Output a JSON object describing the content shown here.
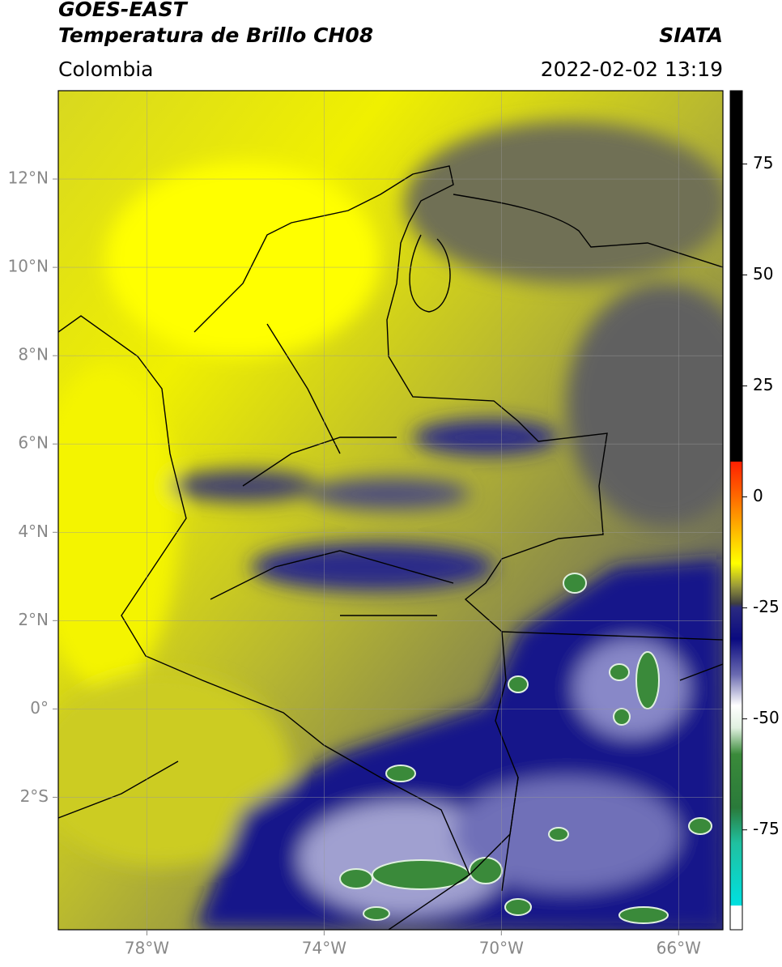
{
  "map": {
    "title": "GOES-EAST",
    "subtitle": "Temperatura de Brillo CH08",
    "source": "SIATA",
    "region": "Colombia",
    "datetime": "2022-02-02 13:19",
    "xlim": [
      -80,
      -65
    ],
    "ylim": [
      -5,
      14
    ],
    "xticks": [
      {
        "value": -78,
        "label": "78°W"
      },
      {
        "value": -74,
        "label": "74°W"
      },
      {
        "value": -70,
        "label": "70°W"
      },
      {
        "value": -66,
        "label": "66°W"
      }
    ],
    "yticks": [
      {
        "value": 12,
        "label": "12°N"
      },
      {
        "value": 10,
        "label": "10°N"
      },
      {
        "value": 8,
        "label": "8°N"
      },
      {
        "value": 6,
        "label": "6°N"
      },
      {
        "value": 4,
        "label": "4°N"
      },
      {
        "value": 2,
        "label": "2°N"
      },
      {
        "value": 0,
        "label": "0°"
      },
      {
        "value": -2,
        "label": "2°S"
      }
    ],
    "grid": true,
    "colorbar": {
      "lim": [
        -97.5,
        91.5
      ],
      "ticks": [
        75,
        50,
        25,
        0,
        -25,
        -50,
        -75
      ],
      "colorscale": [
        [
          91.5,
          "#000000"
        ],
        [
          8,
          "#000000"
        ],
        [
          7.9,
          "#ff2000"
        ],
        [
          0,
          "#ff6a00"
        ],
        [
          -10,
          "#ffd000"
        ],
        [
          -15,
          "#ffff00"
        ],
        [
          -20,
          "#9a9a3a"
        ],
        [
          -24,
          "#404040"
        ],
        [
          -25,
          "#2a2a80"
        ],
        [
          -32,
          "#0a0a80"
        ],
        [
          -40,
          "#6a6ab0"
        ],
        [
          -47,
          "#ffffff"
        ],
        [
          -52,
          "#e0f0e0"
        ],
        [
          -58,
          "#3a8a3a"
        ],
        [
          -70,
          "#2a7a3a"
        ],
        [
          -78,
          "#20c0a0"
        ],
        [
          -92,
          "#00e0e0"
        ],
        [
          -92.1,
          "#ffffff"
        ],
        [
          -97.5,
          "#ffffff"
        ]
      ]
    }
  }
}
